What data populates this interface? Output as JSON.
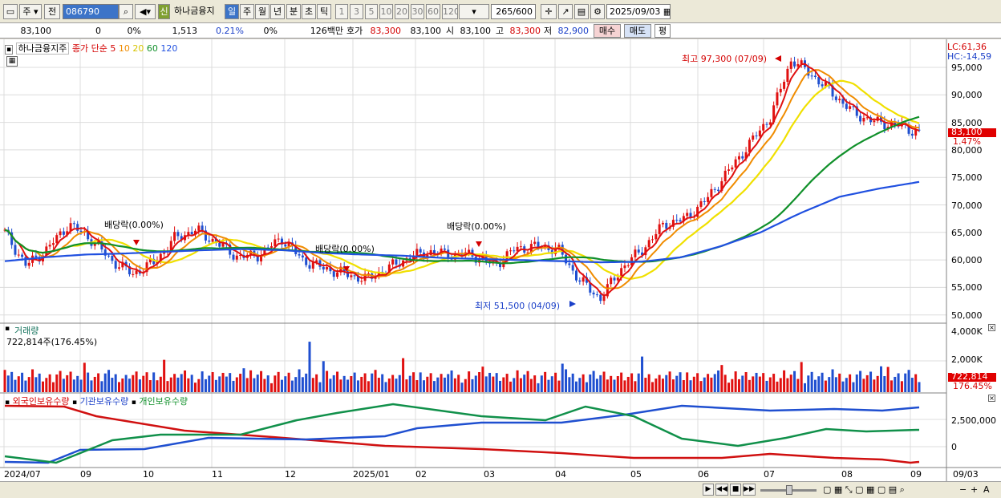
{
  "toolbar": {
    "code_prefix": "주",
    "prev_label": "전",
    "stock_code": "086790",
    "new_badge": "신",
    "stock_name": "하나금융지",
    "periods": [
      "일",
      "주",
      "월",
      "년",
      "분",
      "초",
      "틱"
    ],
    "intervals": [
      "1",
      "3",
      "5",
      "10",
      "20",
      "30",
      "60",
      "120"
    ],
    "count": "265",
    "count_max": "/600",
    "date": "2025/09/03"
  },
  "quote": {
    "price": "83,100",
    "change": "0",
    "change_pct": "0%",
    "volume": "1,513",
    "volume_pct": "0.21%",
    "turnover_pct": "0%",
    "amount": "126백만",
    "bid_label": "호가",
    "bid": "83,300",
    "open_price": "83,100",
    "open_label": "시",
    "open_value": "83,100",
    "high_label": "고",
    "high_value": "83,300",
    "low_label": "저",
    "low_value": "82,900",
    "buy_label": "매수",
    "sell_label": "매도",
    "eval_label": "평"
  },
  "price_panel": {
    "legend_name": "하나금융지주",
    "legend_ma": "종가 단순",
    "ma_periods": [
      "5",
      "10",
      "20",
      "60",
      "120"
    ],
    "lc": "LC:61,36",
    "hc": "HC:-14,59",
    "high_note": "최고 97,300 (07/09)",
    "low_note": "최저 51,500 (04/09)",
    "dividends": [
      "배당락(0.00%)",
      "배당락(0.00%)",
      "배당락(0.00%)"
    ],
    "current_price": "83,100",
    "current_change": "1.47%",
    "y_ticks": [
      "95,000",
      "90,000",
      "85,000",
      "80,000",
      "75,000",
      "70,000",
      "65,000",
      "60,000",
      "55,000",
      "50,000"
    ]
  },
  "volume_panel": {
    "title": "거래량",
    "value": "722,814주(176.45%)",
    "y_ticks": [
      "4,000K",
      "2,000K"
    ],
    "current": "722,814",
    "current_pct": "176.45%"
  },
  "holder_panel": {
    "series": [
      "외국인보유수량",
      "기관보유수량",
      "개인보유수량"
    ],
    "y_ticks": [
      "2,500,000",
      "0"
    ]
  },
  "x_axis": [
    "2024/07",
    "09",
    "10",
    "11",
    "12",
    "2025/01",
    "02",
    "03",
    "04",
    "05",
    "06",
    "07",
    "08",
    "09"
  ],
  "x_axis_right": "09/03",
  "colors": {
    "up": "#e01010",
    "down": "#1f4fd0",
    "ma5": "#e01010",
    "ma10": "#f08c00",
    "ma20": "#f0e000",
    "ma60": "#10902a",
    "ma120": "#2050e0"
  },
  "chart_data": {
    "type": "candlestick",
    "note_source": "price in KRW, daily, Jul 2024 - Sep 2025",
    "ma120_path_values": [
      59800,
      60500,
      61000,
      61200,
      61500,
      61800,
      62000,
      61800,
      61300,
      61000,
      60800,
      60400,
      60200,
      60000,
      59800,
      59600,
      59700,
      60500,
      62500,
      65000,
      68500,
      71500,
      73000,
      74200
    ],
    "close_path_values": [
      65000,
      59000,
      62000,
      66500,
      64000,
      60000,
      57500,
      59500,
      64000,
      65500,
      63000,
      60500,
      61000,
      64000,
      60000,
      58500,
      57500,
      56500,
      58500,
      60500,
      61500,
      61000,
      61000,
      59000,
      62000,
      62500,
      62000,
      56500,
      53000,
      58500,
      62000,
      66500,
      67500,
      71000,
      76000,
      81000,
      86000,
      96500,
      93500,
      90000,
      86500,
      85000,
      84500,
      83100
    ],
    "volume_k": [
      722
    ]
  }
}
